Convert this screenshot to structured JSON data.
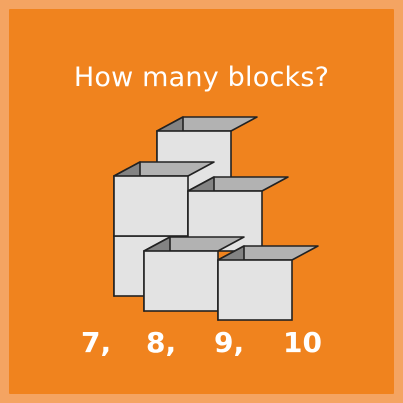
{
  "question": "How many blocks?",
  "options": [
    "7,",
    "8,",
    "9,",
    "10"
  ],
  "colors": {
    "border": "#f4a462",
    "background": "#f0831e",
    "text": "#ffffff",
    "block_front": "#e3e3e3",
    "block_side": "#838383",
    "block_top": "#b2b2b2",
    "outline": "#222222"
  }
}
